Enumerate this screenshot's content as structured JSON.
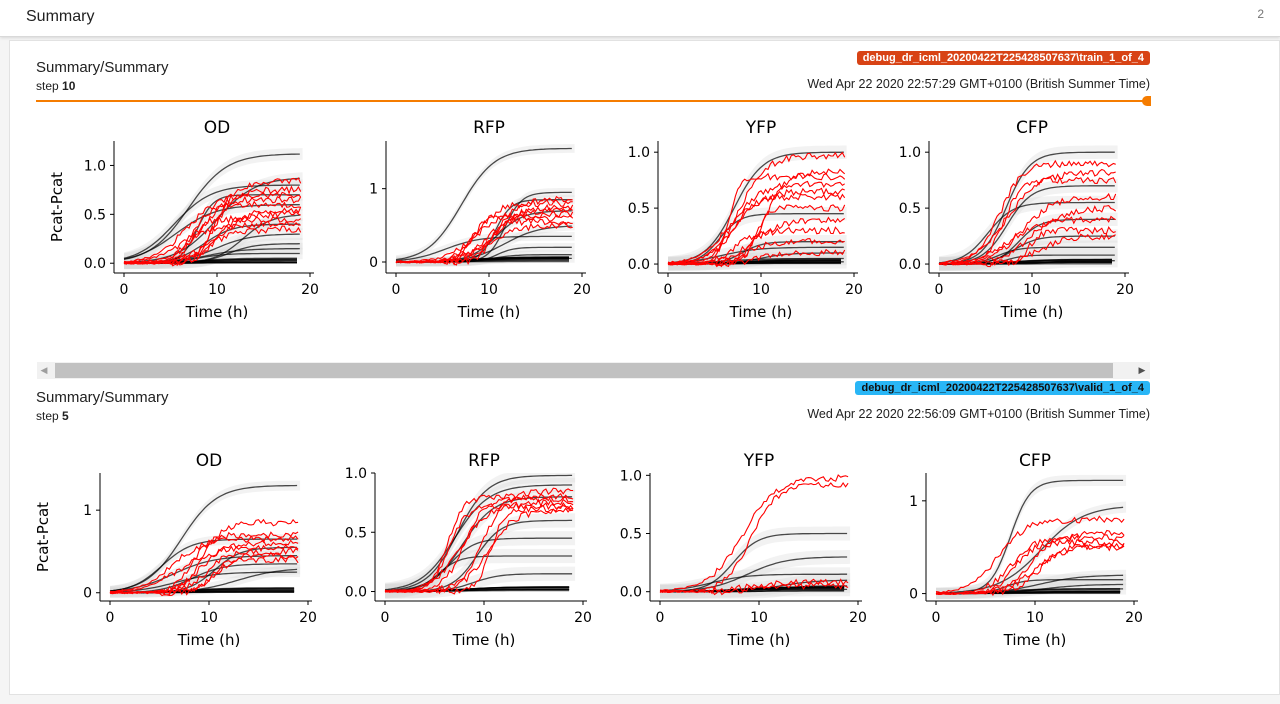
{
  "header": {
    "title": "Summary",
    "count": "2"
  },
  "scrollbar": {
    "left_arrow": "◀",
    "right_arrow": "▶"
  },
  "cards": [
    {
      "id": "train",
      "title": "Summary/Summary",
      "step_label": "step",
      "step_value": "10",
      "run_tag": "debug_dr_icml_20200422T225428507637\\train_1_of_4",
      "timestamp": "Wed Apr 22 2020 22:57:29 GMT+0100 (British Summer Time)",
      "has_slider": true,
      "colors": {
        "tag_bg": "#d84315",
        "slider": "#f57c00"
      }
    },
    {
      "id": "valid",
      "title": "Summary/Summary",
      "step_label": "step",
      "step_value": "5",
      "run_tag": "debug_dr_icml_20200422T225428507637\\valid_1_of_4",
      "timestamp": "Wed Apr 22 2020 22:56:09 GMT+0100 (British Summer Time)",
      "has_slider": false,
      "colors": {
        "tag_bg": "#29b6f6"
      }
    }
  ],
  "chart_data": [
    {
      "type": "line",
      "panel_group": "train step 10",
      "ylabel": "Pcat-Pcat",
      "xlabel": "Time (h)",
      "xlim": [
        0,
        20
      ],
      "xticks": [
        "0",
        "10",
        "20"
      ],
      "series_colors": {
        "observed": "#ff0000",
        "predicted": "#000000",
        "band": "#d9d9d9"
      },
      "panels": [
        {
          "title": "OD",
          "ylim": [
            -0.1,
            1.25
          ],
          "yticks": [
            0.0,
            0.5,
            1.0
          ],
          "ytick_labels": [
            "0.0",
            "0.5",
            "1.0"
          ],
          "observed_max": [
            0.85,
            0.75,
            0.7,
            0.65,
            0.6,
            0.55,
            0.5,
            0.45,
            0.4,
            0.35
          ],
          "predicted_max": [
            1.12,
            0.88,
            0.8,
            0.7,
            0.6,
            0.5,
            0.4,
            0.3,
            0.2,
            0.15,
            0.1
          ]
        },
        {
          "title": "RFP",
          "ylim": [
            -0.15,
            1.65
          ],
          "yticks": [
            0,
            1
          ],
          "ytick_labels": [
            "0",
            "1"
          ],
          "observed_max": [
            0.85,
            0.8,
            0.75,
            0.7,
            0.65,
            0.6,
            0.55,
            0.5
          ],
          "predicted_max": [
            1.55,
            0.95,
            0.85,
            0.7,
            0.5,
            0.35,
            0.2,
            0.1,
            0.05
          ]
        },
        {
          "title": "YFP",
          "ylim": [
            -0.08,
            1.1
          ],
          "yticks": [
            0.0,
            0.5,
            1.0
          ],
          "ytick_labels": [
            "0.0",
            "0.5",
            "1.0"
          ],
          "observed_max": [
            0.97,
            0.82,
            0.78,
            0.72,
            0.65,
            0.6,
            0.5,
            0.4,
            0.3,
            0.2,
            0.1
          ],
          "predicted_max": [
            1.0,
            0.45,
            0.2,
            0.15,
            0.1,
            0.05,
            0.02
          ]
        },
        {
          "title": "CFP",
          "ylim": [
            -0.08,
            1.1
          ],
          "yticks": [
            0.0,
            0.5,
            1.0
          ],
          "ytick_labels": [
            "0.0",
            "0.5",
            "1.0"
          ],
          "observed_max": [
            0.9,
            0.82,
            0.75,
            0.6,
            0.5,
            0.4,
            0.3,
            0.25
          ],
          "predicted_max": [
            1.0,
            0.7,
            0.55,
            0.4,
            0.25,
            0.15,
            0.08,
            0.03
          ]
        }
      ]
    },
    {
      "type": "line",
      "panel_group": "valid step 5",
      "ylabel": "Pcat-Pcat",
      "xlabel": "Time (h)",
      "xlim": [
        0,
        20
      ],
      "xticks": [
        "0",
        "10",
        "20"
      ],
      "series_colors": {
        "observed": "#ff0000",
        "predicted": "#000000",
        "band": "#d9d9d9"
      },
      "panels": [
        {
          "title": "OD",
          "ylim": [
            -0.1,
            1.45
          ],
          "yticks": [
            0,
            1
          ],
          "ytick_labels": [
            "0",
            "1"
          ],
          "observed_max": [
            0.85,
            0.7,
            0.65,
            0.6,
            0.55,
            0.5,
            0.45,
            0.4
          ],
          "predicted_max": [
            1.3,
            0.65,
            0.55,
            0.45,
            0.35,
            0.3,
            0.25
          ]
        },
        {
          "title": "RFP",
          "ylim": [
            -0.08,
            1.0
          ],
          "yticks": [
            0.0,
            0.5,
            1.0
          ],
          "ytick_labels": [
            "0.0",
            "0.5",
            "1.0"
          ],
          "observed_max": [
            0.85,
            0.8,
            0.78,
            0.75,
            0.72,
            0.7,
            0.68
          ],
          "predicted_max": [
            0.98,
            0.9,
            0.8,
            0.6,
            0.45,
            0.3,
            0.15
          ]
        },
        {
          "title": "YFP",
          "ylim": [
            -0.08,
            1.02
          ],
          "yticks": [
            0.0,
            0.5,
            1.0
          ],
          "ytick_labels": [
            "0.0",
            "0.5",
            "1.0"
          ],
          "observed_max": [
            0.98,
            0.92,
            0.08,
            0.05
          ],
          "predicted_max": [
            0.5,
            0.3,
            0.15,
            0.1,
            0.05,
            0.02
          ]
        },
        {
          "title": "CFP",
          "ylim": [
            -0.08,
            1.3
          ],
          "yticks": [
            0,
            1
          ],
          "ytick_labels": [
            "0",
            "1"
          ],
          "observed_max": [
            0.8,
            0.65,
            0.6,
            0.55,
            0.52,
            0.5
          ],
          "predicted_max": [
            1.22,
            0.95,
            0.2,
            0.15,
            0.1,
            0.05
          ]
        }
      ]
    }
  ]
}
